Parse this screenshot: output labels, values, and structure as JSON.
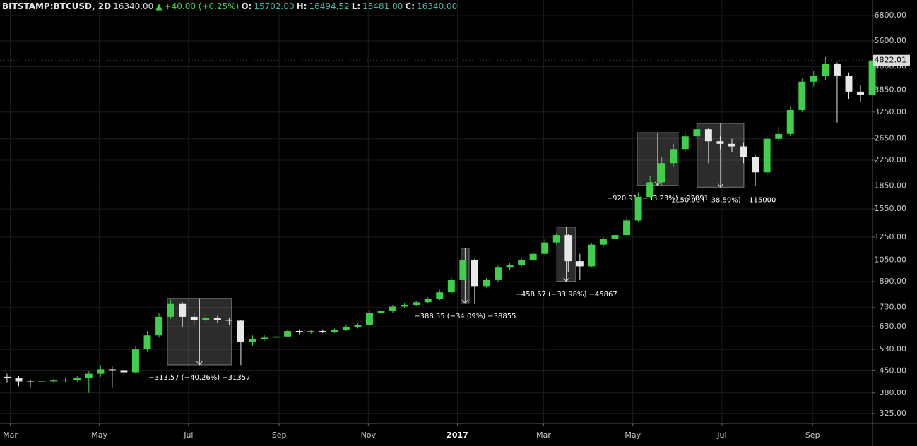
{
  "header": {
    "symbol": "BITSTAMP:BTCUSD, 2D",
    "price": "16340.00",
    "change": "+40.00 (+0.25%)",
    "open_label": "O:",
    "open": "15702.00",
    "high_label": "H:",
    "high": "16494.52",
    "low_label": "L:",
    "low": "15481.00",
    "close_label": "C:",
    "close": "16340.00"
  },
  "chart_data": {
    "type": "candlestick",
    "log_scale": true,
    "grid": true,
    "up_color": "#3fcf4a",
    "down_color": "#e8e8e8",
    "xlim": [
      0,
      597
    ],
    "xticks": [
      {
        "value": 7,
        "label": "Mar"
      },
      {
        "value": 68,
        "label": "May"
      },
      {
        "value": 129,
        "label": "Jul"
      },
      {
        "value": 191,
        "label": "Sep"
      },
      {
        "value": 252,
        "label": "Nov"
      },
      {
        "value": 313,
        "label": "2017"
      },
      {
        "value": 372,
        "label": "Mar"
      },
      {
        "value": 433,
        "label": "May"
      },
      {
        "value": 494,
        "label": "Jul"
      },
      {
        "value": 556,
        "label": "Sep"
      }
    ],
    "ylim": [
      301,
      7656
    ],
    "yticks": [
      {
        "value": 325,
        "label": "325.00"
      },
      {
        "value": 380,
        "label": "380.00"
      },
      {
        "value": 450,
        "label": "450.00"
      },
      {
        "value": 530,
        "label": "530.00"
      },
      {
        "value": 630,
        "label": "630.00"
      },
      {
        "value": 730,
        "label": "730.00"
      },
      {
        "value": 890,
        "label": "890.00"
      },
      {
        "value": 1050,
        "label": "1050.00"
      },
      {
        "value": 1250,
        "label": "1250.00"
      },
      {
        "value": 1550,
        "label": "1550.00"
      },
      {
        "value": 1850,
        "label": "1850.00"
      },
      {
        "value": 2250,
        "label": "2250.00"
      },
      {
        "value": 2650,
        "label": "2650.00"
      },
      {
        "value": 3250,
        "label": "3250.00"
      },
      {
        "value": 3850,
        "label": "3850.00"
      },
      {
        "value": 4600,
        "label": "4600.00"
      },
      {
        "value": 5600,
        "label": "5600.00"
      },
      {
        "value": 6800,
        "label": "6800.00"
      }
    ],
    "x": [
      0,
      8,
      16,
      24,
      32,
      40,
      48,
      56,
      64,
      72,
      80,
      88,
      96,
      104,
      112,
      120,
      128,
      136,
      144,
      152,
      160,
      168,
      176,
      184,
      192,
      200,
      208,
      216,
      224,
      232,
      240,
      248,
      256,
      264,
      272,
      280,
      288,
      296,
      304,
      312,
      320,
      328,
      336,
      344,
      352,
      360,
      368,
      376,
      384,
      392,
      400,
      408,
      416,
      424,
      432,
      440,
      448,
      456,
      464,
      472,
      480,
      488,
      496,
      504,
      512,
      520,
      528,
      536,
      544,
      552,
      560,
      568,
      576,
      584,
      592
    ],
    "open": [
      430,
      425,
      415,
      412,
      415,
      418,
      420,
      425,
      440,
      455,
      450,
      445,
      530,
      590,
      680,
      750,
      680,
      665,
      675,
      665,
      660,
      560,
      575,
      580,
      585,
      610,
      605,
      610,
      605,
      615,
      630,
      640,
      700,
      710,
      735,
      745,
      760,
      780,
      820,
      900,
      1050,
      860,
      900,
      990,
      1010,
      1050,
      1100,
      1200,
      1270,
      1040,
      1000,
      1180,
      1230,
      1270,
      1420,
      1700,
      1900,
      2200,
      2450,
      2700,
      2850,
      2600,
      2550,
      2500,
      2300,
      2050,
      2650,
      2750,
      3300,
      4100,
      4300,
      4700,
      4300,
      3800,
      3700
    ],
    "high": [
      440,
      432,
      420,
      422,
      425,
      428,
      432,
      448,
      470,
      465,
      458,
      545,
      610,
      700,
      775,
      760,
      700,
      690,
      685,
      675,
      665,
      590,
      592,
      595,
      620,
      618,
      615,
      618,
      622,
      640,
      648,
      715,
      725,
      745,
      755,
      770,
      790,
      835,
      925,
      1140,
      1060,
      915,
      1005,
      1030,
      1070,
      1120,
      1230,
      1290,
      1280,
      1100,
      1190,
      1250,
      1290,
      1450,
      1760,
      2000,
      2300,
      2550,
      2800,
      2980,
      2880,
      2700,
      2650,
      2580,
      2350,
      2700,
      2900,
      3400,
      4200,
      4450,
      4950,
      4750,
      4400,
      4000,
      4900
    ],
    "low": [
      410,
      400,
      395,
      405,
      408,
      410,
      412,
      380,
      430,
      395,
      435,
      440,
      520,
      580,
      670,
      630,
      640,
      650,
      650,
      640,
      470,
      545,
      565,
      570,
      580,
      595,
      598,
      600,
      600,
      610,
      622,
      635,
      690,
      700,
      728,
      738,
      752,
      772,
      810,
      890,
      750,
      850,
      890,
      975,
      1000,
      1040,
      1090,
      1180,
      960,
      900,
      990,
      1160,
      1200,
      1260,
      1400,
      1680,
      1850,
      2150,
      2400,
      2650,
      2200,
      2450,
      2400,
      2200,
      1850,
      2000,
      2600,
      2700,
      3250,
      3950,
      4150,
      3000,
      3600,
      3500,
      3650
    ],
    "close": [
      425,
      415,
      412,
      415,
      418,
      420,
      425,
      440,
      455,
      450,
      445,
      530,
      590,
      680,
      750,
      680,
      665,
      675,
      665,
      660,
      560,
      575,
      580,
      585,
      610,
      605,
      610,
      605,
      615,
      630,
      640,
      700,
      710,
      735,
      745,
      760,
      780,
      820,
      900,
      1050,
      860,
      900,
      990,
      1010,
      1050,
      1100,
      1200,
      1270,
      1040,
      1000,
      1180,
      1230,
      1270,
      1420,
      1700,
      1900,
      2200,
      2450,
      2700,
      2850,
      2600,
      2550,
      2500,
      2300,
      2050,
      2650,
      2750,
      3300,
      4100,
      4300,
      4700,
      4300,
      3800,
      3700,
      4822
    ],
    "last_price": 4822.01,
    "measures": [
      {
        "x": [
          114.5,
          158.5
        ],
        "y": [
          783,
          471
        ],
        "label": "−313.57 (−40.26%) −31357"
      },
      {
        "x": [
          315.5,
          321
        ],
        "y": [
          1148,
          753
        ],
        "label": "−388.55 (−34.09%) −38855"
      },
      {
        "x": [
          381,
          394
        ],
        "y": [
          1350,
          891
        ],
        "label": "−458.67 (−33.98%) −45867"
      },
      {
        "x": [
          436,
          464
        ],
        "y": [
          2778,
          1854
        ],
        "label": "−920.91 (−33.23%) −92091"
      },
      {
        "x": [
          477,
          509
        ],
        "y": [
          2980,
          1830
        ],
        "label": "−1150.00 (−38.59%) −115000"
      }
    ]
  }
}
